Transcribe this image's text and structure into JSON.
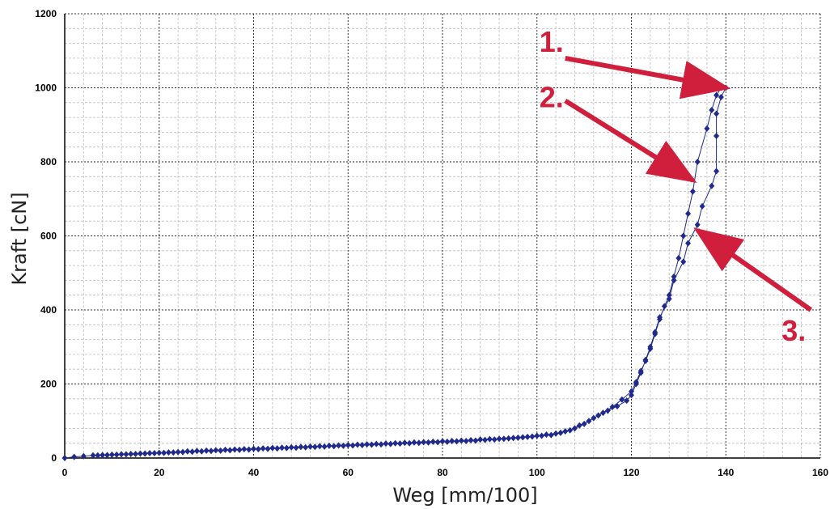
{
  "chart_data": {
    "type": "line",
    "title": "",
    "xlabel": "Weg [mm/100]",
    "ylabel": "Kraft [cN]",
    "xlim": [
      0,
      160
    ],
    "ylim": [
      0,
      1200
    ],
    "x_ticks": [
      0,
      20,
      40,
      60,
      80,
      100,
      120,
      140,
      160
    ],
    "y_ticks": [
      0,
      200,
      400,
      600,
      800,
      1000,
      1200
    ],
    "grid": true,
    "legend": "none",
    "series_color": "#1f2a8c",
    "annotation_color": "#d01f3c",
    "series": [
      {
        "points": [
          [
            0,
            0
          ],
          [
            2,
            3
          ],
          [
            4,
            5
          ],
          [
            6,
            7
          ],
          [
            8,
            8
          ],
          [
            10,
            9
          ],
          [
            12,
            10
          ],
          [
            14,
            11
          ],
          [
            16,
            12
          ],
          [
            18,
            13
          ],
          [
            20,
            14
          ],
          [
            22,
            15
          ],
          [
            24,
            16
          ],
          [
            26,
            18
          ],
          [
            28,
            19
          ],
          [
            30,
            20
          ],
          [
            32,
            21
          ],
          [
            34,
            22
          ],
          [
            36,
            23
          ],
          [
            38,
            24
          ],
          [
            40,
            25
          ],
          [
            42,
            26
          ],
          [
            44,
            27
          ],
          [
            46,
            28
          ],
          [
            48,
            29
          ],
          [
            50,
            30
          ],
          [
            52,
            31
          ],
          [
            54,
            32
          ],
          [
            56,
            33
          ],
          [
            58,
            34
          ],
          [
            60,
            35
          ],
          [
            62,
            36
          ],
          [
            64,
            37
          ],
          [
            66,
            38
          ],
          [
            68,
            39
          ],
          [
            70,
            40
          ],
          [
            72,
            41
          ],
          [
            74,
            42
          ],
          [
            76,
            43
          ],
          [
            78,
            44
          ],
          [
            80,
            45
          ],
          [
            82,
            46
          ],
          [
            84,
            47
          ],
          [
            86,
            48
          ],
          [
            88,
            50
          ],
          [
            90,
            51
          ],
          [
            92,
            52
          ],
          [
            94,
            53
          ],
          [
            96,
            55
          ],
          [
            98,
            57
          ],
          [
            100,
            60
          ],
          [
            102,
            63
          ],
          [
            104,
            66
          ],
          [
            106,
            72
          ],
          [
            108,
            80
          ],
          [
            110,
            92
          ],
          [
            112,
            108
          ],
          [
            114,
            122
          ],
          [
            116,
            138
          ],
          [
            118,
            158
          ],
          [
            120,
            180
          ],
          [
            121,
            205
          ],
          [
            122,
            235
          ],
          [
            123,
            262
          ],
          [
            124,
            295
          ],
          [
            125,
            335
          ],
          [
            126,
            375
          ],
          [
            127,
            410
          ],
          [
            128,
            440
          ],
          [
            129,
            490
          ],
          [
            130,
            540
          ],
          [
            131,
            600
          ],
          [
            132,
            660
          ],
          [
            133,
            720
          ],
          [
            134,
            800
          ],
          [
            136,
            890
          ],
          [
            137,
            940
          ],
          [
            138,
            980
          ],
          [
            139,
            1000
          ],
          [
            140,
            1000
          ],
          [
            139,
            975
          ],
          [
            138,
            930
          ],
          [
            138,
            870
          ],
          [
            138,
            775
          ],
          [
            137,
            735
          ],
          [
            135,
            680
          ],
          [
            134,
            630
          ],
          [
            132,
            580
          ],
          [
            131,
            530
          ],
          [
            129,
            480
          ],
          [
            128,
            430
          ],
          [
            126,
            380
          ],
          [
            125,
            340
          ],
          [
            124,
            300
          ],
          [
            123,
            265
          ],
          [
            122,
            230
          ],
          [
            121,
            200
          ],
          [
            120,
            170
          ],
          [
            119,
            155
          ],
          [
            117,
            140
          ],
          [
            115,
            128
          ],
          [
            113,
            115
          ],
          [
            111,
            100
          ],
          [
            109,
            88
          ],
          [
            107,
            75
          ],
          [
            105,
            68
          ],
          [
            103,
            62
          ],
          [
            101,
            60
          ],
          [
            99,
            58
          ],
          [
            97,
            56
          ],
          [
            95,
            54
          ],
          [
            93,
            52
          ],
          [
            91,
            50
          ],
          [
            89,
            49
          ],
          [
            87,
            47
          ],
          [
            85,
            46
          ],
          [
            83,
            45
          ],
          [
            81,
            44
          ],
          [
            79,
            43
          ],
          [
            77,
            42
          ],
          [
            75,
            41
          ],
          [
            73,
            40
          ],
          [
            71,
            39
          ],
          [
            69,
            38
          ],
          [
            67,
            37
          ],
          [
            65,
            36
          ],
          [
            63,
            35
          ],
          [
            61,
            34
          ],
          [
            59,
            33
          ],
          [
            57,
            32
          ],
          [
            55,
            31
          ],
          [
            53,
            30
          ],
          [
            51,
            29
          ],
          [
            49,
            28
          ],
          [
            47,
            27
          ],
          [
            45,
            26
          ],
          [
            43,
            25
          ],
          [
            41,
            24
          ],
          [
            39,
            23
          ],
          [
            37,
            22
          ],
          [
            35,
            21
          ],
          [
            33,
            20
          ],
          [
            31,
            19
          ],
          [
            29,
            18
          ],
          [
            27,
            17
          ],
          [
            25,
            16
          ],
          [
            23,
            15
          ],
          [
            21,
            14
          ],
          [
            19,
            13
          ],
          [
            17,
            12
          ],
          [
            15,
            11
          ],
          [
            13,
            10
          ],
          [
            11,
            9
          ],
          [
            9,
            8
          ],
          [
            7,
            7
          ]
        ]
      }
    ],
    "annotations": [
      {
        "label": "1.",
        "tail": [
          106,
          1080
        ],
        "head": [
          140,
          1000
        ]
      },
      {
        "label": "2.",
        "tail": [
          106,
          965
        ],
        "head": [
          133,
          750
        ]
      },
      {
        "label": "3.",
        "tail": [
          158,
          400
        ],
        "head": [
          134,
          615
        ]
      }
    ]
  }
}
